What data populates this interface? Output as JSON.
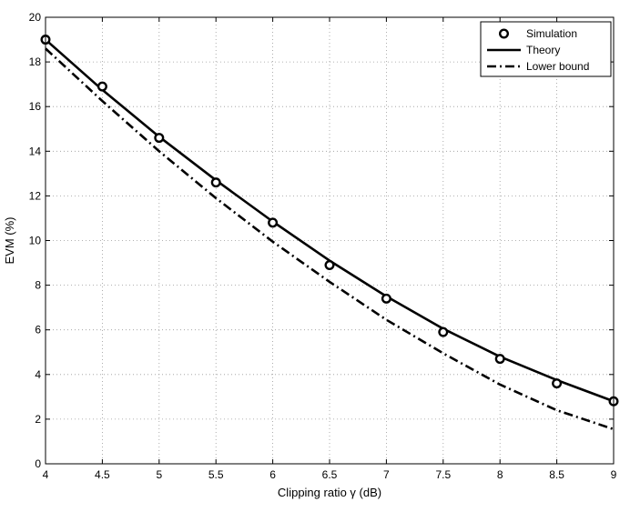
{
  "chart_data": {
    "type": "line",
    "title": "",
    "xlabel": "Clipping ratio γ (dB)",
    "ylabel": "EVM (%)",
    "xlim": [
      4,
      9
    ],
    "ylim": [
      0,
      20
    ],
    "xticks": [
      4,
      4.5,
      5,
      5.5,
      6,
      6.5,
      7,
      7.5,
      8,
      8.5,
      9
    ],
    "xtick_labels": [
      "4",
      "4.5",
      "5",
      "5.5",
      "6",
      "6.5",
      "7",
      "7.5",
      "8",
      "8.5",
      "9"
    ],
    "yticks": [
      0,
      2,
      4,
      6,
      8,
      10,
      12,
      14,
      16,
      18,
      20
    ],
    "ytick_labels": [
      "0",
      "2",
      "4",
      "6",
      "8",
      "10",
      "12",
      "14",
      "16",
      "18",
      "20"
    ],
    "grid": true,
    "legend_position": "top-right",
    "x": [
      4,
      4.5,
      5,
      5.5,
      6,
      6.5,
      7,
      7.5,
      8,
      8.5,
      9
    ],
    "series": [
      {
        "name": "Simulation",
        "style": "markers",
        "marker": "circle",
        "color": "#000000",
        "values": [
          19.0,
          16.9,
          14.6,
          12.6,
          10.8,
          8.9,
          7.4,
          5.9,
          4.7,
          3.6,
          2.8
        ]
      },
      {
        "name": "Theory",
        "style": "solid",
        "color": "#000000",
        "values": [
          19.0,
          16.75,
          14.65,
          12.7,
          10.85,
          9.1,
          7.5,
          6.05,
          4.8,
          3.75,
          2.8
        ]
      },
      {
        "name": "Lower bound",
        "style": "dashdot",
        "color": "#000000",
        "values": [
          18.6,
          16.25,
          14.0,
          11.9,
          9.95,
          8.15,
          6.45,
          4.95,
          3.55,
          2.4,
          1.55
        ]
      }
    ]
  }
}
